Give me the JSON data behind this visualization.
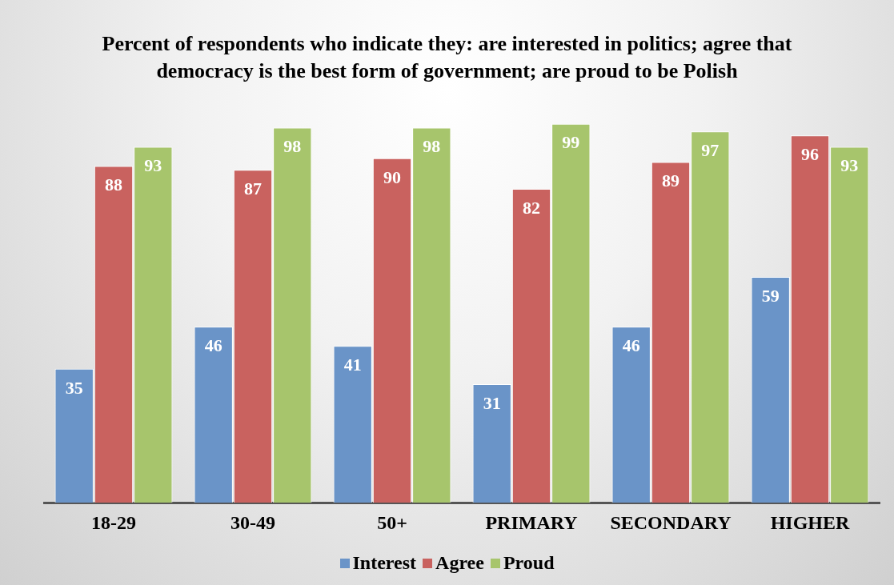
{
  "chart_data": {
    "type": "bar",
    "title": "Percent of respondents who indicate they: are interested in politics; agree that democracy is the best form of government; are proud to be Polish",
    "categories": [
      "18-29",
      "30-49",
      "50+",
      "PRIMARY",
      "SECONDARY",
      "HIGHER"
    ],
    "series": [
      {
        "name": "Interest",
        "color": "#6a94c8",
        "values": [
          35,
          46,
          41,
          31,
          46,
          59
        ]
      },
      {
        "name": "Agree",
        "color": "#c9625f",
        "values": [
          88,
          87,
          90,
          82,
          89,
          96
        ]
      },
      {
        "name": "Proud",
        "color": "#a7c56c",
        "values": [
          93,
          98,
          98,
          99,
          97,
          93
        ]
      }
    ],
    "data_labels": true,
    "legend": "bottom",
    "grid": false
  }
}
